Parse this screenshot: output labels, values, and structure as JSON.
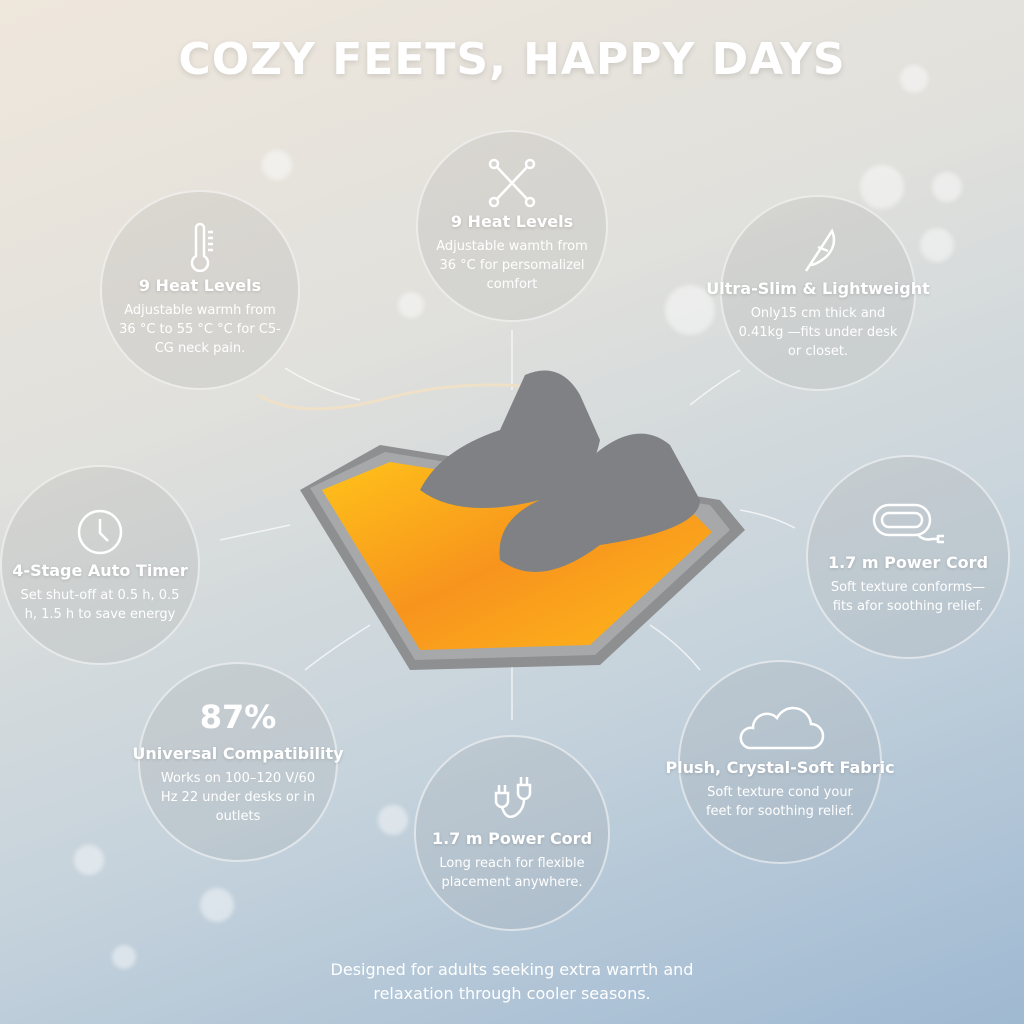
{
  "title": "COZY FEETS, HAPPY DAYS",
  "features": [
    {
      "icon": "thermometer-icon",
      "title": "9 Heat Levels",
      "text": "Adjustable warmh from 36 °C to 55 °C °C for C5-CG neck pain."
    },
    {
      "icon": "crossed-tools-icon",
      "title": "9 Heat Levels",
      "text": "Adjustable wamth from 36 °C for persomalizel comfort"
    },
    {
      "icon": "feather-icon",
      "title": "Ultra-Slim & Lightweight",
      "text": "Only15 cm thick and 0.41kg —fits under desk or closet."
    },
    {
      "icon": "clock-icon",
      "title": "4-Stage Auto Timer",
      "text": "Set shut-off at 0.5 h, 0.5 h, 1.5 h to save energy"
    },
    {
      "icon": "coiled-cord-icon",
      "title": "1.7 m Power Cord",
      "text": "Soft texture conforms—fits afor soothing relief."
    },
    {
      "stat": "87%",
      "title": "Universal Compatibility",
      "text": "Works on 100–120 V/60 Hz 22 under desks or in outlets"
    },
    {
      "icon": "plugs-icon",
      "title": "1.7 m Power Cord",
      "text": "Long reach for flexible placement anywhere."
    },
    {
      "icon": "cloud-icon",
      "title": "Plush, Crystal-Soft Fabric",
      "text": "Soft texture cond your feet for soothing relief."
    }
  ],
  "footer": "Designed for adults seeking extra warrth and relaxation through cooler seasons.",
  "colors": {
    "heat_orange": "#f7941d",
    "heat_yellow": "#ffc21a",
    "slipper_gray": "#7f8184"
  }
}
